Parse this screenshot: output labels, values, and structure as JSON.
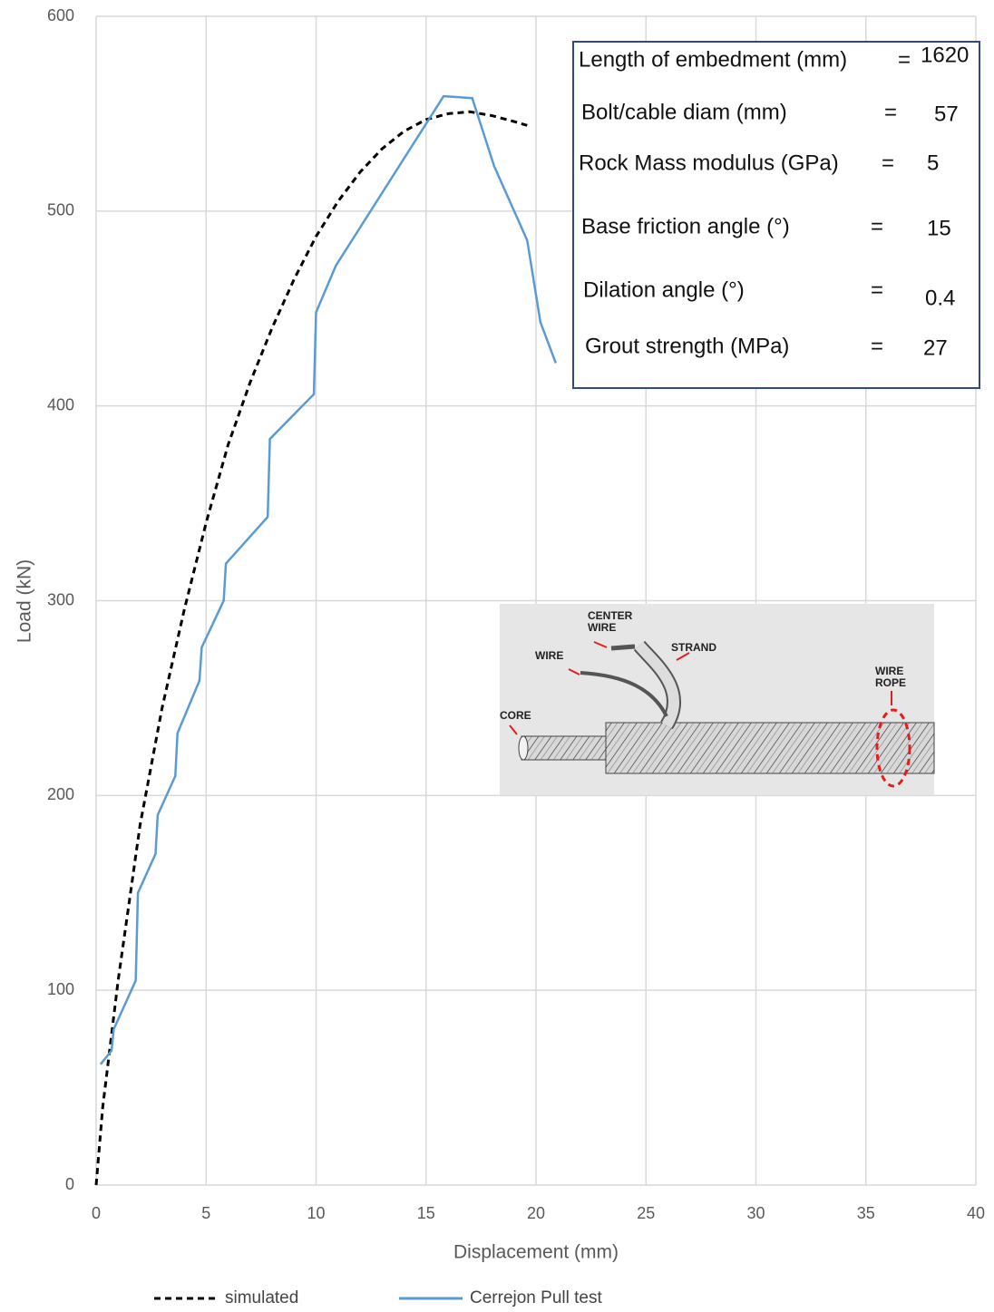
{
  "chart_data": {
    "type": "line",
    "xlabel": "Displacement (mm)",
    "ylabel": "Load (kN)",
    "xlim": [
      0,
      40
    ],
    "xticks": [
      0,
      5,
      10,
      15,
      20,
      25,
      30,
      35,
      40
    ],
    "ylim": [
      0,
      600
    ],
    "yticks": [
      0,
      100,
      200,
      300,
      400,
      500,
      600
    ],
    "grid": true,
    "legend": "bottom",
    "series": [
      {
        "name": "simulated",
        "color": "#000000",
        "dashed": true,
        "x": [
          0,
          0.3,
          1,
          2,
          3,
          4,
          5,
          6,
          7,
          8,
          9,
          10,
          11,
          12,
          13,
          14,
          15,
          16,
          17,
          18,
          19,
          19.6
        ],
        "values": [
          0,
          40,
          105,
          185,
          245,
          295,
          340,
          380,
          412,
          440,
          465,
          487,
          505,
          520,
          532,
          541,
          547,
          550,
          551,
          549,
          546,
          544
        ]
      },
      {
        "name": "Cerrejon Pull test",
        "color": "#5b9bd5",
        "dashed": false,
        "x": [
          0.2,
          0.7,
          0.8,
          1.8,
          1.9,
          2.7,
          2.8,
          3.6,
          3.7,
          4.7,
          4.8,
          5.8,
          5.9,
          7.8,
          7.9,
          9.9,
          10,
          10.9,
          15.8,
          17.1,
          18.1,
          19.6,
          20.2,
          20.9
        ],
        "values": [
          62,
          69,
          80,
          105,
          150,
          170,
          190,
          210,
          232,
          259,
          276,
          300,
          319,
          343,
          383,
          406,
          448,
          472,
          559,
          558,
          523,
          485,
          443,
          422
        ]
      }
    ],
    "annotation_box": [
      {
        "label": "Length of embedment (mm)",
        "sign": "=",
        "value": 1620
      },
      {
        "label": "Bolt/cable diam (mm)",
        "sign": "=",
        "value": 57
      },
      {
        "label": "Rock Mass modulus (GPa)",
        "sign": "=",
        "value": 5
      },
      {
        "label": "Base friction angle (°)",
        "sign": "=",
        "value": 15
      },
      {
        "label": "Dilation angle (°)",
        "sign": "=",
        "value": 0.4
      },
      {
        "label": "Grout strength (MPa)",
        "sign": "=",
        "value": 27
      }
    ],
    "inset_labels": [
      {
        "lines": [
          "CENTER",
          "WIRE"
        ]
      },
      {
        "lines": [
          "STRAND"
        ]
      },
      {
        "lines": [
          "WIRE"
        ]
      },
      {
        "lines": [
          "CORE"
        ]
      },
      {
        "lines": [
          "WIRE",
          "ROPE"
        ]
      }
    ]
  }
}
